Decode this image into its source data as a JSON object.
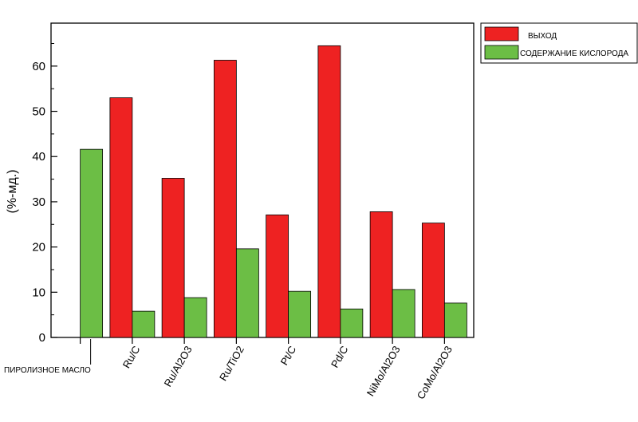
{
  "chart_data": {
    "type": "bar",
    "title": "",
    "xlabel": "",
    "ylabel": "(%-мд.)",
    "ylim": [
      0,
      69.5
    ],
    "yticks": [
      0,
      10,
      20,
      30,
      40,
      50,
      60
    ],
    "grid": false,
    "legend_position": "outside-top-right",
    "categories": [
      "ПИРОЛИЗНОЕ МАСЛО",
      "Ru/C",
      "Ru/Al2O3",
      "Ru/TiO2",
      "Pt/C",
      "Pd/C",
      "NiMo/Al2O3",
      "CoMo/Al2O3"
    ],
    "series": [
      {
        "name": "ВЫХОД",
        "color": "#ee2222",
        "values": [
          null,
          53,
          35.2,
          61.3,
          27.1,
          64.5,
          27.8,
          25.3
        ]
      },
      {
        "name": "СОДЕРЖАНИЕ КИСЛОРОДА",
        "color": "#6cbe45",
        "values": [
          41.6,
          5.8,
          8.8,
          19.6,
          10.2,
          6.3,
          10.6,
          7.6
        ]
      }
    ]
  }
}
